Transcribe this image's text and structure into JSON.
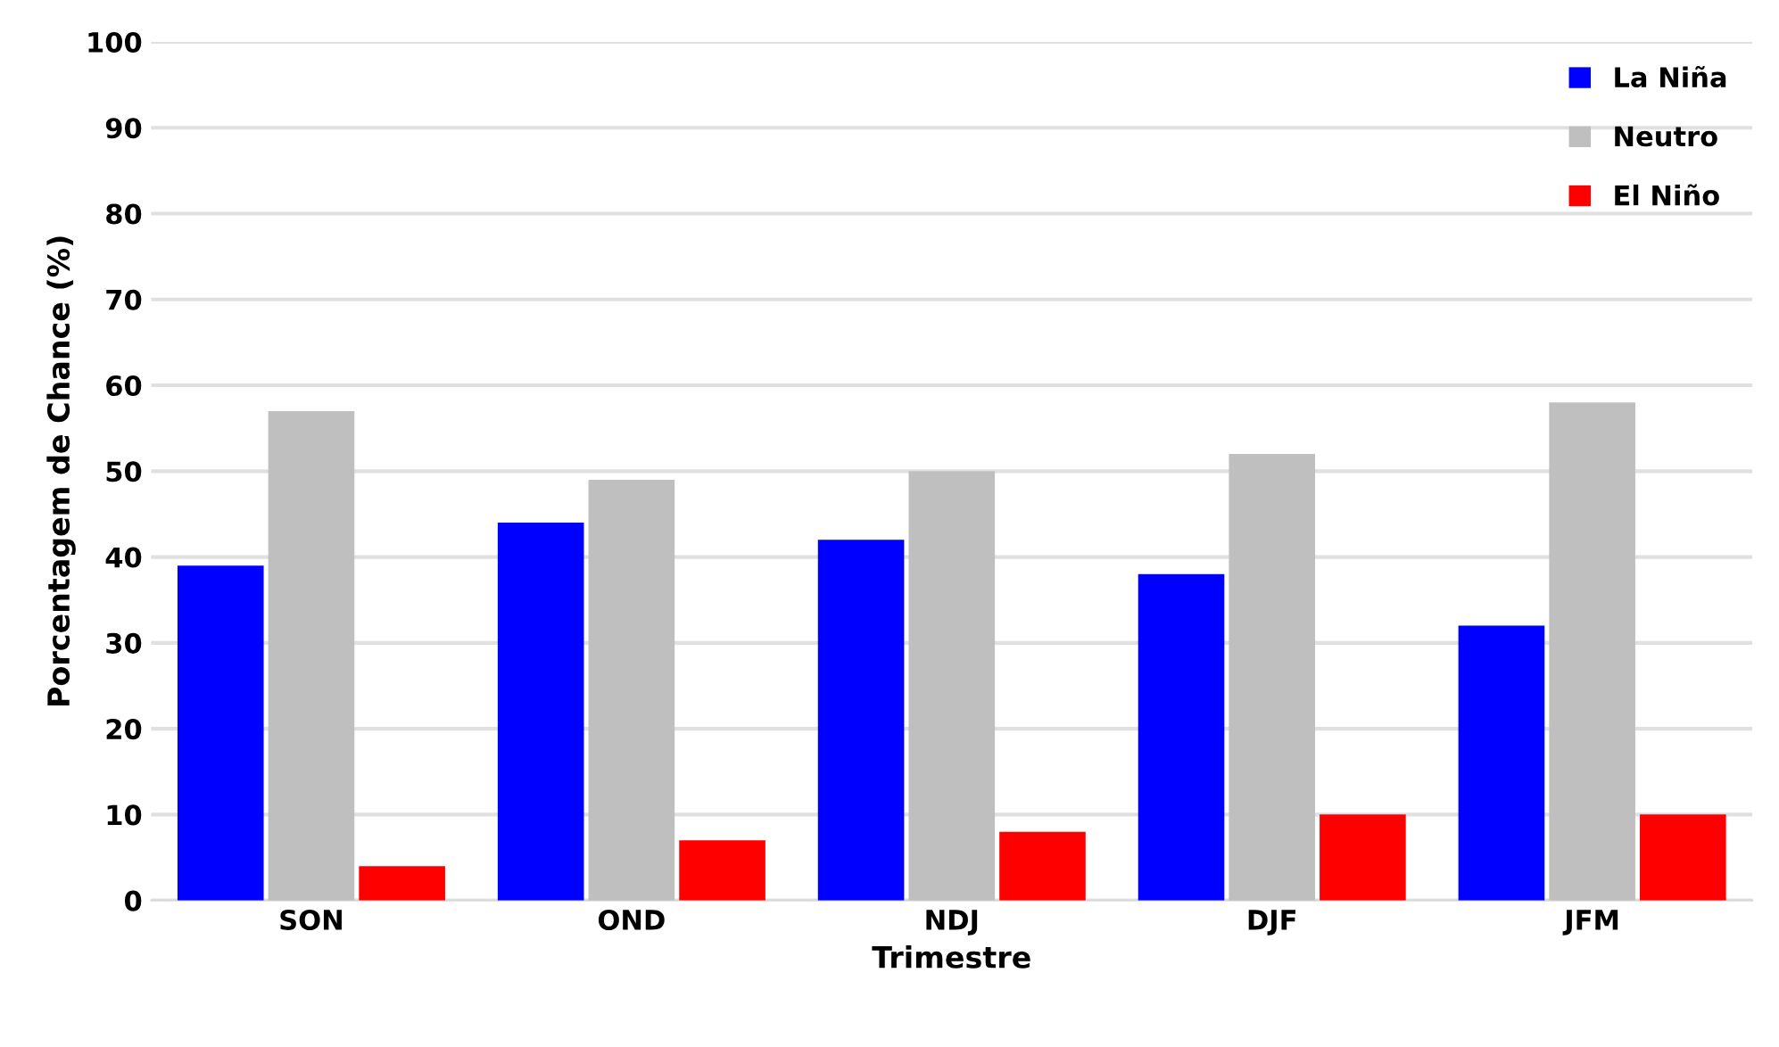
{
  "chart_data": {
    "type": "bar",
    "xlabel": "Trimestre",
    "ylabel": "Porcentagem de Chance (%)",
    "categories": [
      "SON",
      "OND",
      "NDJ",
      "DJF",
      "JFM"
    ],
    "series": [
      {
        "name": "La Niña",
        "color": "#0000ff",
        "values": [
          39,
          44,
          42,
          38,
          32
        ]
      },
      {
        "name": "Neutro",
        "color": "#bfbfbf",
        "values": [
          57,
          49,
          50,
          52,
          58
        ]
      },
      {
        "name": "El Niño",
        "color": "#ff0000",
        "values": [
          4,
          7,
          8,
          10,
          10
        ]
      }
    ],
    "ylim": [
      0,
      100
    ],
    "yticks": [
      0,
      10,
      20,
      30,
      40,
      50,
      60,
      70,
      80,
      90,
      100
    ],
    "grid": "y",
    "legend": "top right"
  }
}
